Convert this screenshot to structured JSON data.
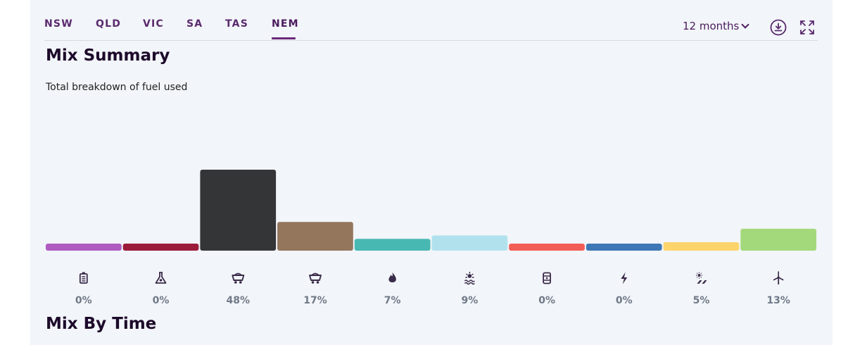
{
  "tabs": [
    {
      "label": "NSW",
      "active": false
    },
    {
      "label": "QLD",
      "active": false
    },
    {
      "label": "VIC",
      "active": false
    },
    {
      "label": "SA",
      "active": false
    },
    {
      "label": "TAS",
      "active": false
    },
    {
      "label": "NEM",
      "active": true
    }
  ],
  "controls": {
    "period_label": "12 months",
    "download_icon": "download-icon",
    "fullscreen_icon": "expand-icon"
  },
  "mix_summary": {
    "title": "Mix Summary",
    "subtitle": "Total breakdown of fuel used"
  },
  "mix_by_time": {
    "title": "Mix By Time"
  },
  "chart_data": {
    "type": "bar",
    "categories": [
      "battery",
      "bioenergy",
      "black-coal",
      "brown-coal",
      "gas",
      "hydro",
      "liquid-fuel",
      "other",
      "solar",
      "wind"
    ],
    "values": [
      0,
      0,
      48,
      17,
      7,
      9,
      0,
      0,
      5,
      13
    ],
    "labels": [
      "0%",
      "0%",
      "48%",
      "17%",
      "7%",
      "9%",
      "0%",
      "0%",
      "5%",
      "13%"
    ],
    "colors": [
      "#b05bc0",
      "#9b1b3b",
      "#343537",
      "#93765c",
      "#48b8b2",
      "#b2e1ee",
      "#f25d57",
      "#3e77b6",
      "#fdd46b",
      "#a3d97b"
    ],
    "icons": [
      "battery-icon",
      "flask-icon",
      "coal-cart-icon",
      "coal-cart-icon",
      "flame-icon",
      "hydro-icon",
      "fuel-drum-icon",
      "lightning-icon",
      "solar-icon",
      "wind-turbine-icon"
    ],
    "title": "",
    "xlabel": "",
    "ylabel": "",
    "ylim": [
      0,
      100
    ],
    "grid": false,
    "legend": "none"
  }
}
